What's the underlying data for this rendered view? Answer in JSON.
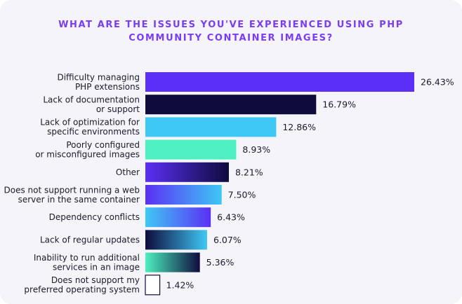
{
  "chart_data": {
    "type": "bar",
    "orientation": "horizontal",
    "title_lines": [
      "WHAT ARE THE ISSUES YOU'VE EXPERIENCED USING PHP",
      "COMMUNITY CONTAINER IMAGES?"
    ],
    "categories": [
      [
        "Difficulty managing",
        "PHP extensions"
      ],
      [
        "Lack of documentation",
        "or support"
      ],
      [
        "Lack of optimization for",
        "specific environments"
      ],
      [
        "Poorly configured",
        "or misconfigured images"
      ],
      [
        "Other"
      ],
      [
        "Does not support running a web",
        "server in the same container"
      ],
      [
        "Dependency conflicts"
      ],
      [
        "Lack of regular updates"
      ],
      [
        "Inability to run additional",
        "services in an image"
      ],
      [
        "Does not support my",
        "preferred operating system"
      ]
    ],
    "values": [
      26.43,
      16.79,
      12.86,
      8.93,
      8.21,
      7.5,
      6.43,
      6.07,
      5.36,
      1.42
    ],
    "value_labels": [
      "26.43%",
      "16.79%",
      "12.86%",
      "8.93%",
      "8.21%",
      "7.50%",
      "6.43%",
      "6.07%",
      "5.36%",
      "1.42%"
    ],
    "bar_fills": [
      "purple",
      "navy",
      "cyan",
      "mint",
      "purple-navy",
      "purple-cyan",
      "cyan-purple",
      "navy-cyan",
      "mint-navy",
      "white"
    ],
    "colors": {
      "purple": "#5b2ff5",
      "navy": "#0e0b3d",
      "cyan": "#3ec8f5",
      "mint": "#4df0c0",
      "title": "#7b3cf6"
    },
    "grid": false,
    "legend": "none"
  }
}
